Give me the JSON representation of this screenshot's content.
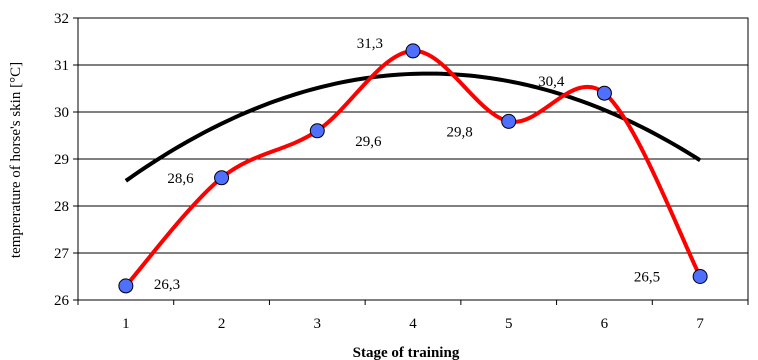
{
  "chart_data": {
    "type": "line",
    "title": "",
    "xlabel": "Stage of training",
    "ylabel": "temprerature of horse's skin  [°C]",
    "x": [
      1,
      2,
      3,
      4,
      5,
      6,
      7
    ],
    "x_tick_labels": [
      "1",
      "2",
      "3",
      "4",
      "5",
      "6",
      "7"
    ],
    "y_tick_labels": [
      "26",
      "27",
      "28",
      "29",
      "30",
      "31",
      "32"
    ],
    "ylim": [
      26,
      32
    ],
    "grid": "horizontal",
    "legend": "none",
    "series": [
      {
        "kind": "smoothed line with markers",
        "values": [
          26.3,
          28.6,
          29.6,
          31.3,
          29.8,
          30.4,
          26.5
        ],
        "data_labels": [
          "26,3",
          "28,6",
          "29,6",
          "31,3",
          "29,8",
          "30,4",
          "26,5"
        ],
        "line_color": "#ff0000",
        "marker_color": "#4f6fff"
      },
      {
        "kind": "polynomial trend line",
        "coefficients_desc": [
          -0.22857,
          1.90143,
          26.86286
        ],
        "line_color": "#000000"
      }
    ]
  }
}
